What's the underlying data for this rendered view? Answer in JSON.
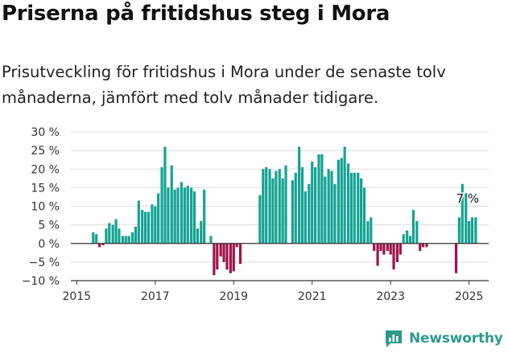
{
  "header": {
    "title": "Priserna på fritidshus steg i Mora",
    "subtitle": "Prisutveckling för fritidshus i Mora under de senaste tolv månaderna, jämfört med tolv månader tidigare."
  },
  "brand": {
    "name": "Newsworthy",
    "icon": "newsworthy-logo-icon"
  },
  "colors": {
    "positive": "#14a394",
    "negative": "#a0134a",
    "grid": "#dddddd",
    "axis": "#333333"
  },
  "chart_data": {
    "type": "bar",
    "title": "",
    "xlabel": "",
    "ylabel": "",
    "ylim": [
      -10,
      30
    ],
    "yticks": [
      -10,
      -5,
      0,
      5,
      10,
      15,
      20,
      25,
      30
    ],
    "ytick_labels": [
      "−10 %",
      "−5 %",
      "0 %",
      "5 %",
      "10 %",
      "15 %",
      "20 %",
      "25 %",
      "30 %"
    ],
    "xticks": [
      2015,
      2017,
      2019,
      2021,
      2023,
      2025
    ],
    "xtick_labels": [
      "2015",
      "2017",
      "2019",
      "2021",
      "2023",
      "2025"
    ],
    "grid": true,
    "annotation": {
      "text": "7 %",
      "x": 2025.0,
      "y": 7
    },
    "x": [
      2015.42,
      2015.5,
      2015.58,
      2015.67,
      2015.75,
      2015.83,
      2015.92,
      2016.0,
      2016.08,
      2016.17,
      2016.25,
      2016.33,
      2016.42,
      2016.5,
      2016.58,
      2016.67,
      2016.75,
      2016.83,
      2016.92,
      2017.0,
      2017.08,
      2017.17,
      2017.25,
      2017.33,
      2017.42,
      2017.5,
      2017.58,
      2017.67,
      2017.75,
      2017.83,
      2017.92,
      2018.0,
      2018.08,
      2018.17,
      2018.25,
      2018.33,
      2018.42,
      2018.5,
      2018.58,
      2018.67,
      2018.75,
      2018.83,
      2018.92,
      2019.0,
      2019.08,
      2019.17,
      2019.25,
      2019.67,
      2019.75,
      2019.83,
      2019.92,
      2020.0,
      2020.08,
      2020.17,
      2020.25,
      2020.33,
      2020.42,
      2020.5,
      2020.58,
      2020.67,
      2020.75,
      2020.83,
      2020.92,
      2021.0,
      2021.08,
      2021.17,
      2021.25,
      2021.33,
      2021.42,
      2021.5,
      2021.58,
      2021.67,
      2021.75,
      2021.83,
      2021.92,
      2022.0,
      2022.08,
      2022.17,
      2022.25,
      2022.33,
      2022.42,
      2022.5,
      2022.58,
      2022.67,
      2022.75,
      2022.83,
      2022.92,
      2023.0,
      2023.08,
      2023.17,
      2023.25,
      2023.33,
      2023.42,
      2023.5,
      2023.58,
      2023.67,
      2023.75,
      2023.83,
      2023.92,
      2024.67,
      2024.75,
      2024.83,
      2024.92,
      2025.0,
      2025.08,
      2025.17
    ],
    "values": [
      3,
      2.5,
      -1,
      -0.5,
      4,
      5.5,
      5,
      6.5,
      4,
      2,
      2,
      2,
      3,
      4.5,
      11.5,
      9,
      8.5,
      8.5,
      10.5,
      10,
      13.5,
      20.5,
      26,
      15,
      21,
      14.5,
      15,
      16.5,
      15,
      15.5,
      15,
      14,
      4,
      6,
      14.5,
      null,
      2,
      -8.5,
      -7,
      -3.5,
      -5,
      -7,
      -8,
      -7.5,
      -1,
      -5.5,
      null,
      13,
      20,
      20.5,
      20,
      17.5,
      19.5,
      20,
      17.5,
      21,
      null,
      17,
      19,
      26,
      20.5,
      14,
      16,
      22,
      20.5,
      24,
      24,
      18,
      20,
      19.5,
      16,
      22.5,
      23,
      26,
      21.5,
      19,
      19,
      19,
      17.5,
      15,
      6,
      7,
      -2,
      -6,
      -2,
      -3,
      -2,
      -3,
      -7,
      -5,
      -3,
      2.5,
      3.5,
      2,
      9,
      6,
      -2,
      -1,
      -1,
      -8,
      7,
      16,
      13.5,
      6,
      7,
      7
    ]
  }
}
